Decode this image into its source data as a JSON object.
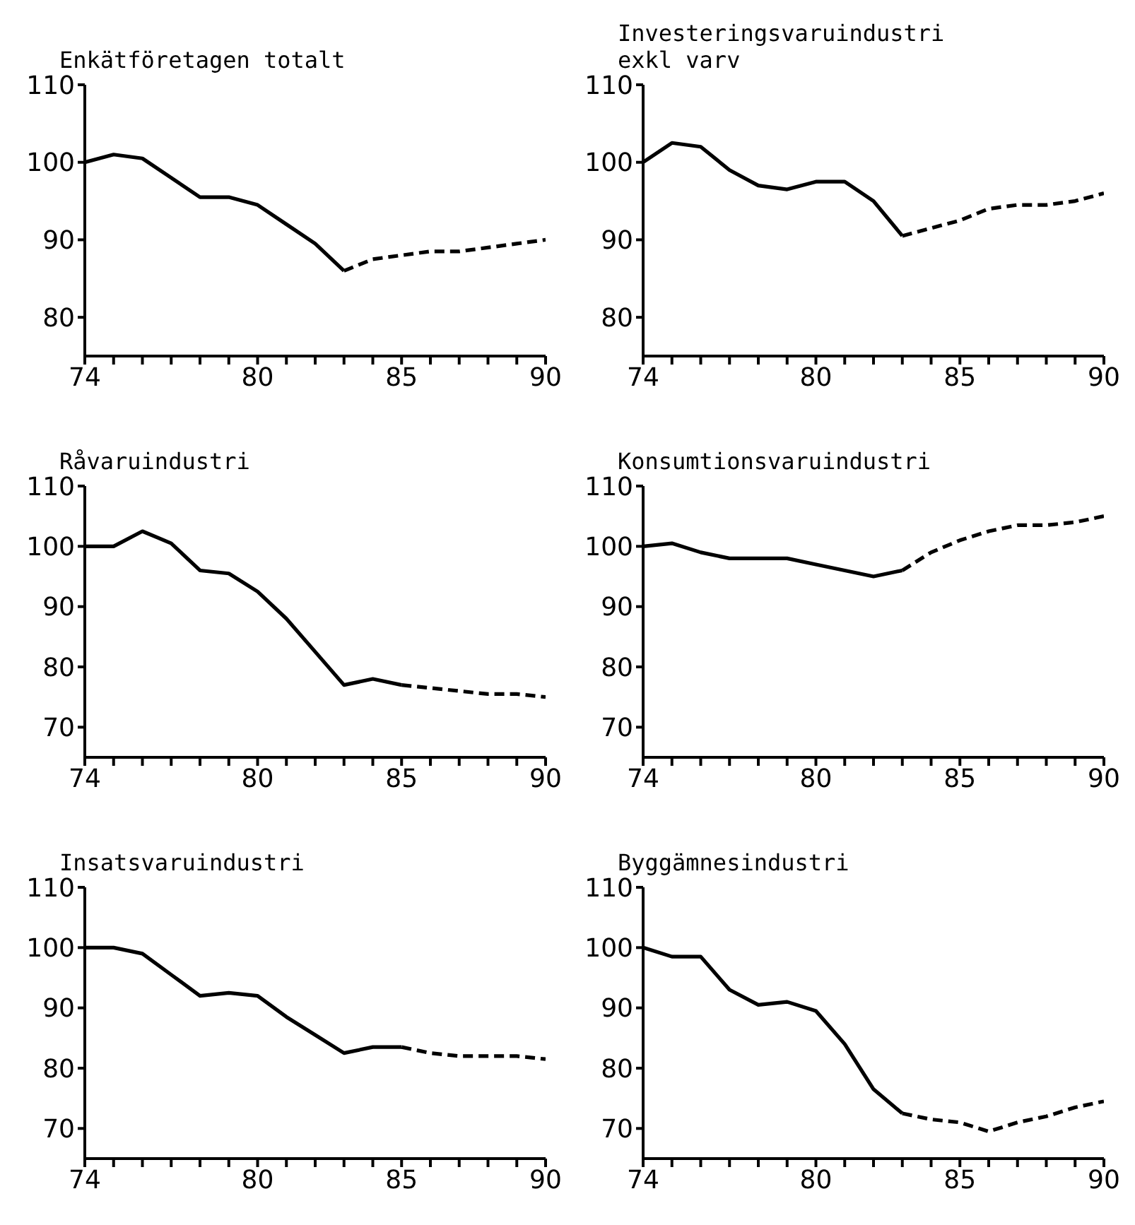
{
  "chart_data": [
    {
      "type": "line",
      "title": "Enkätföretagen totalt",
      "xlim": [
        74,
        90
      ],
      "ylim": [
        75,
        110
      ],
      "yticks": [
        80,
        90,
        100,
        110
      ],
      "xticks": [
        74,
        {
          "value": 75,
          "label": null
        },
        {
          "value": 76,
          "label": null
        },
        {
          "value": 77,
          "label": null
        },
        {
          "value": 78,
          "label": null
        },
        {
          "value": 79,
          "label": null
        },
        80,
        {
          "value": 81,
          "label": null
        },
        {
          "value": 82,
          "label": null
        },
        {
          "value": 83,
          "label": null
        },
        {
          "value": 84,
          "label": null
        },
        85,
        {
          "value": 86,
          "label": null
        },
        {
          "value": 87,
          "label": null
        },
        {
          "value": 88,
          "label": null
        },
        {
          "value": 89,
          "label": null
        },
        90
      ],
      "series": [
        {
          "color": "#000000",
          "line_style": "solid",
          "x": [
            74,
            75,
            76,
            77,
            78,
            79,
            80,
            81,
            82,
            83
          ],
          "values": [
            100,
            101,
            100.5,
            98,
            95.5,
            95.5,
            94.5,
            92,
            89.5,
            86
          ]
        },
        {
          "color": "#000000",
          "line_style": "dashed",
          "x": [
            83,
            84,
            85,
            86,
            87,
            88,
            89,
            90
          ],
          "values": [
            86,
            87.5,
            88,
            88.5,
            88.5,
            89,
            89.5,
            90
          ]
        }
      ]
    },
    {
      "type": "line",
      "title": "Investeringsvaruindustri\nexkl varv",
      "xlim": [
        74,
        90
      ],
      "ylim": [
        75,
        110
      ],
      "yticks": [
        80,
        90,
        100,
        110
      ],
      "xticks": [
        74,
        {
          "value": 75,
          "label": null
        },
        {
          "value": 76,
          "label": null
        },
        {
          "value": 77,
          "label": null
        },
        {
          "value": 78,
          "label": null
        },
        {
          "value": 79,
          "label": null
        },
        80,
        {
          "value": 81,
          "label": null
        },
        {
          "value": 82,
          "label": null
        },
        {
          "value": 83,
          "label": null
        },
        {
          "value": 84,
          "label": null
        },
        85,
        {
          "value": 86,
          "label": null
        },
        {
          "value": 87,
          "label": null
        },
        {
          "value": 88,
          "label": null
        },
        {
          "value": 89,
          "label": null
        },
        90
      ],
      "series": [
        {
          "color": "#000000",
          "line_style": "solid",
          "x": [
            74,
            75,
            76,
            77,
            78,
            79,
            80,
            81,
            82,
            83
          ],
          "values": [
            100,
            102.5,
            102,
            99,
            97,
            96.5,
            97.5,
            97.5,
            95,
            90.5
          ]
        },
        {
          "color": "#000000",
          "line_style": "dashed",
          "x": [
            83,
            84,
            85,
            86,
            87,
            88,
            89,
            90
          ],
          "values": [
            90.5,
            91.5,
            92.5,
            94,
            94.5,
            94.5,
            95,
            96
          ]
        }
      ]
    },
    {
      "type": "line",
      "title": "Råvaruindustri",
      "xlim": [
        74,
        90
      ],
      "ylim": [
        65,
        110
      ],
      "yticks": [
        70,
        80,
        90,
        100,
        110
      ],
      "xticks": [
        74,
        {
          "value": 75,
          "label": null
        },
        {
          "value": 76,
          "label": null
        },
        {
          "value": 77,
          "label": null
        },
        {
          "value": 78,
          "label": null
        },
        {
          "value": 79,
          "label": null
        },
        80,
        {
          "value": 81,
          "label": null
        },
        {
          "value": 82,
          "label": null
        },
        {
          "value": 83,
          "label": null
        },
        {
          "value": 84,
          "label": null
        },
        85,
        {
          "value": 86,
          "label": null
        },
        {
          "value": 87,
          "label": null
        },
        {
          "value": 88,
          "label": null
        },
        {
          "value": 89,
          "label": null
        },
        90
      ],
      "series": [
        {
          "color": "#000000",
          "line_style": "solid",
          "x": [
            74,
            75,
            76,
            77,
            78,
            79,
            80,
            81,
            82,
            83,
            84,
            85
          ],
          "values": [
            100,
            100,
            102.5,
            100.5,
            96,
            95.5,
            92.5,
            88,
            82.5,
            77,
            78,
            77
          ]
        },
        {
          "color": "#000000",
          "line_style": "dashed",
          "x": [
            85,
            86,
            87,
            88,
            89,
            90
          ],
          "values": [
            77,
            76.5,
            76,
            75.5,
            75.5,
            75
          ]
        }
      ]
    },
    {
      "type": "line",
      "title": "Konsumtionsvaruindustri",
      "xlim": [
        74,
        90
      ],
      "ylim": [
        65,
        110
      ],
      "yticks": [
        70,
        80,
        90,
        100,
        110
      ],
      "xticks": [
        74,
        {
          "value": 75,
          "label": null
        },
        {
          "value": 76,
          "label": null
        },
        {
          "value": 77,
          "label": null
        },
        {
          "value": 78,
          "label": null
        },
        {
          "value": 79,
          "label": null
        },
        80,
        {
          "value": 81,
          "label": null
        },
        {
          "value": 82,
          "label": null
        },
        {
          "value": 83,
          "label": null
        },
        {
          "value": 84,
          "label": null
        },
        85,
        {
          "value": 86,
          "label": null
        },
        {
          "value": 87,
          "label": null
        },
        {
          "value": 88,
          "label": null
        },
        {
          "value": 89,
          "label": null
        },
        90
      ],
      "series": [
        {
          "color": "#000000",
          "line_style": "solid",
          "x": [
            74,
            75,
            76,
            77,
            78,
            79,
            80,
            81,
            82,
            83
          ],
          "values": [
            100,
            100.5,
            99,
            98,
            98,
            98,
            97,
            96,
            95,
            96
          ]
        },
        {
          "color": "#000000",
          "line_style": "dashed",
          "x": [
            83,
            84,
            85,
            86,
            87,
            88,
            89,
            90
          ],
          "values": [
            96,
            99,
            101,
            102.5,
            103.5,
            103.5,
            104,
            105
          ]
        }
      ]
    },
    {
      "type": "line",
      "title": "Insatsvaruindustri",
      "xlim": [
        74,
        90
      ],
      "ylim": [
        65,
        110
      ],
      "yticks": [
        70,
        80,
        90,
        100,
        110
      ],
      "xticks": [
        74,
        {
          "value": 75,
          "label": null
        },
        {
          "value": 76,
          "label": null
        },
        {
          "value": 77,
          "label": null
        },
        {
          "value": 78,
          "label": null
        },
        {
          "value": 79,
          "label": null
        },
        80,
        {
          "value": 81,
          "label": null
        },
        {
          "value": 82,
          "label": null
        },
        {
          "value": 83,
          "label": null
        },
        {
          "value": 84,
          "label": null
        },
        85,
        {
          "value": 86,
          "label": null
        },
        {
          "value": 87,
          "label": null
        },
        {
          "value": 88,
          "label": null
        },
        {
          "value": 89,
          "label": null
        },
        90
      ],
      "series": [
        {
          "color": "#000000",
          "line_style": "solid",
          "x": [
            74,
            75,
            76,
            77,
            78,
            79,
            80,
            81,
            82,
            83,
            84,
            85
          ],
          "values": [
            100,
            100,
            99,
            95.5,
            92,
            92.5,
            92,
            88.5,
            85.5,
            82.5,
            83.5,
            83.5
          ]
        },
        {
          "color": "#000000",
          "line_style": "dashed",
          "x": [
            85,
            86,
            87,
            88,
            89,
            90
          ],
          "values": [
            83.5,
            82.5,
            82,
            82,
            82,
            81.5
          ]
        }
      ]
    },
    {
      "type": "line",
      "title": "Byggämnesindustri",
      "xlim": [
        74,
        90
      ],
      "ylim": [
        65,
        110
      ],
      "yticks": [
        70,
        80,
        90,
        100,
        110
      ],
      "xticks": [
        74,
        {
          "value": 75,
          "label": null
        },
        {
          "value": 76,
          "label": null
        },
        {
          "value": 77,
          "label": null
        },
        {
          "value": 78,
          "label": null
        },
        {
          "value": 79,
          "label": null
        },
        80,
        {
          "value": 81,
          "label": null
        },
        {
          "value": 82,
          "label": null
        },
        {
          "value": 83,
          "label": null
        },
        {
          "value": 84,
          "label": null
        },
        85,
        {
          "value": 86,
          "label": null
        },
        {
          "value": 87,
          "label": null
        },
        {
          "value": 88,
          "label": null
        },
        {
          "value": 89,
          "label": null
        },
        90
      ],
      "series": [
        {
          "color": "#000000",
          "line_style": "solid",
          "x": [
            74,
            75,
            76,
            77,
            78,
            79,
            80,
            81,
            82,
            83
          ],
          "values": [
            100,
            98.5,
            98.5,
            93,
            90.5,
            91,
            89.5,
            84,
            76.5,
            72.5
          ]
        },
        {
          "color": "#000000",
          "line_style": "dashed",
          "x": [
            83,
            84,
            85,
            86,
            87,
            88,
            89,
            90
          ],
          "values": [
            72.5,
            71.5,
            71,
            69.5,
            71,
            72,
            73.5,
            74.5
          ]
        }
      ]
    }
  ]
}
